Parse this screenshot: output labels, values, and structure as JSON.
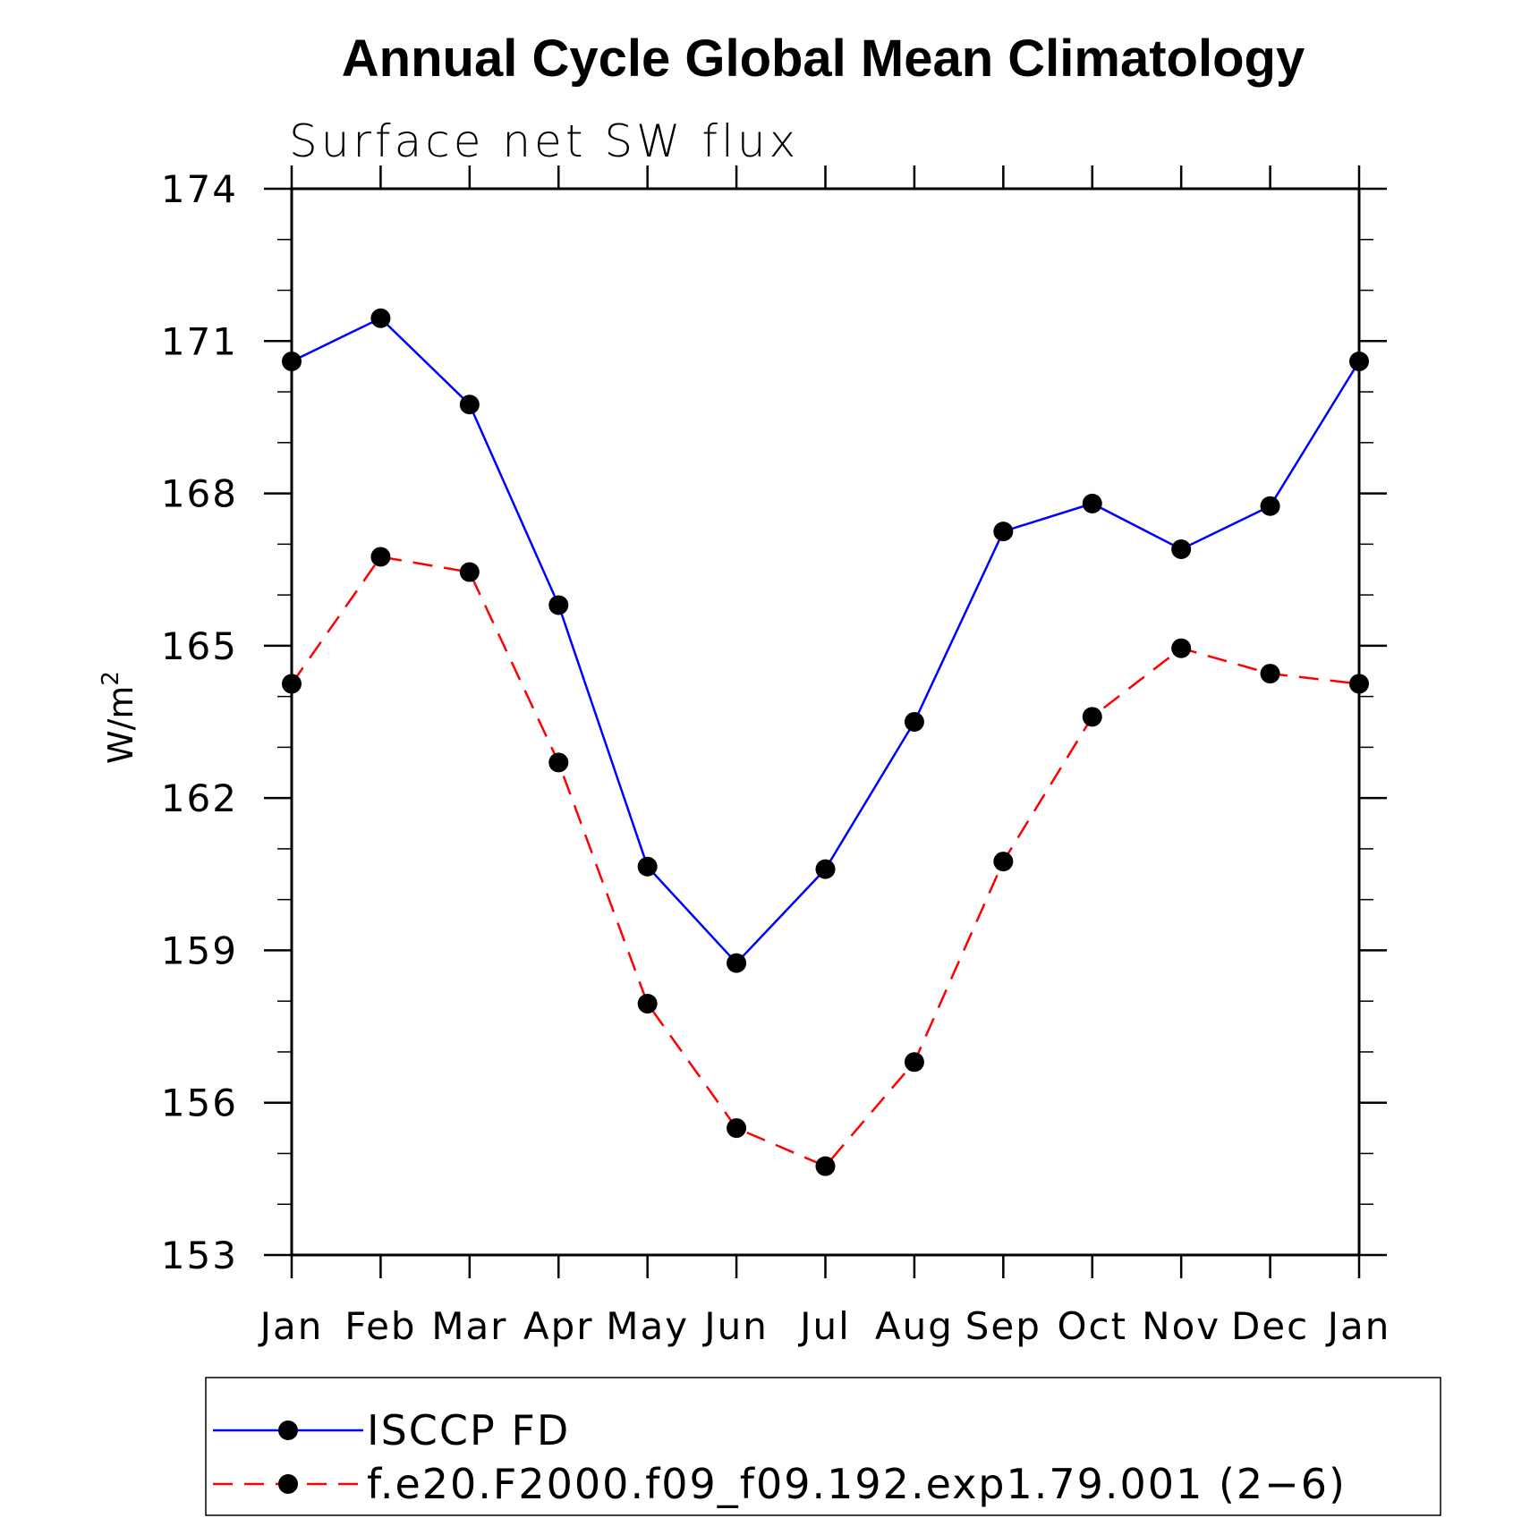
{
  "chart_data": {
    "type": "line",
    "title": "Annual Cycle Global Mean Climatology",
    "subtitle": "Surface net SW flux",
    "ylabel": "W/m",
    "ylabel_superscript": "2",
    "xlabel": "",
    "categories": [
      "Jan",
      "Feb",
      "Mar",
      "Apr",
      "May",
      "Jun",
      "Jul",
      "Aug",
      "Sep",
      "Oct",
      "Nov",
      "Dec",
      "Jan"
    ],
    "ylim": [
      153,
      174
    ],
    "yticks": [
      153,
      156,
      159,
      162,
      165,
      168,
      171,
      174
    ],
    "series": [
      {
        "name": "ISCCP FD",
        "color": "#0000ff",
        "line_style": "solid",
        "marker": "filled-circle",
        "values": [
          170.6,
          171.45,
          169.75,
          165.8,
          160.65,
          158.75,
          160.6,
          163.5,
          167.25,
          167.8,
          166.9,
          167.75,
          170.6
        ]
      },
      {
        "name": "f.e20.F2000.f09_f09.192.exp1.79.001 (2−6)",
        "color": "#ff0000",
        "line_style": "dashed",
        "marker": "filled-circle",
        "values": [
          164.25,
          166.75,
          166.45,
          162.7,
          157.95,
          155.5,
          154.75,
          156.8,
          160.75,
          163.6,
          164.95,
          164.45,
          164.25
        ]
      }
    ],
    "grid": false,
    "legend_position": "bottom"
  }
}
